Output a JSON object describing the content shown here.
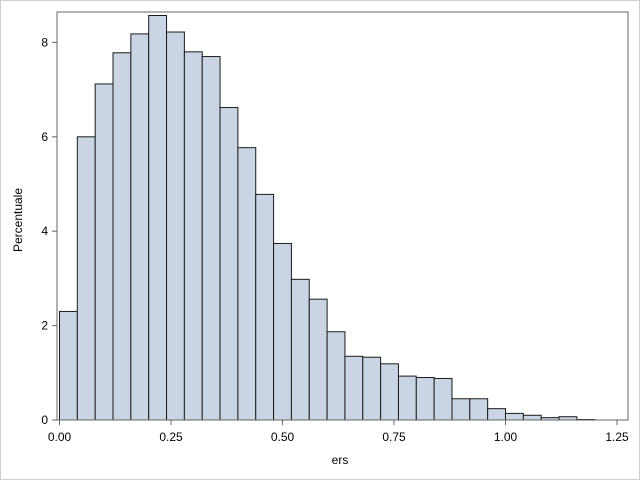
{
  "colors": {
    "bar_fill": "#c9d4e4",
    "bar_stroke": "#1b1b1b",
    "axis": "#666666",
    "frame": "#cfcfcf"
  },
  "chart_data": {
    "type": "bar",
    "subtype": "histogram",
    "title": "",
    "xlabel": "ers",
    "ylabel": "Percentuale",
    "xlim": [
      0,
      1.25
    ],
    "ylim": [
      0,
      8.6
    ],
    "grid": false,
    "legend": "none",
    "bin_width": 0.04,
    "bin_start": 0.0,
    "values": [
      2.3,
      6.0,
      7.12,
      7.78,
      8.18,
      8.57,
      8.22,
      7.8,
      7.7,
      6.62,
      5.77,
      4.78,
      3.74,
      2.98,
      2.56,
      1.87,
      1.35,
      1.33,
      1.19,
      0.93,
      0.9,
      0.88,
      0.45,
      0.45,
      0.24,
      0.14,
      0.1,
      0.05,
      0.07,
      0.01
    ],
    "x_ticks": [
      "0.00",
      "0.25",
      "0.50",
      "0.75",
      "1.00",
      "1.25"
    ],
    "y_ticks": [
      "0",
      "2",
      "4",
      "6",
      "8"
    ]
  }
}
